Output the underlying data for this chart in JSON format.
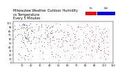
{
  "title": "Milwaukee Weather Outdoor Humidity\nvs Temperature\nEvery 5 Minutes",
  "xlabel": "",
  "ylabel": "",
  "xlim": [
    0,
    110
  ],
  "ylim": [
    0,
    105
  ],
  "xticks": [
    10,
    20,
    30,
    40,
    50,
    60,
    70,
    80,
    90,
    100,
    110
  ],
  "yticks": [
    0,
    10,
    20,
    30,
    40,
    50,
    60,
    70,
    80,
    90,
    100
  ],
  "bg_color": "#ffffff",
  "grid_color": "#cccccc",
  "dot_color_cold": "#0000ff",
  "dot_color_hot": "#ff0000",
  "legend_cold_label": "Cold",
  "legend_hot_label": "Hot",
  "title_fontsize": 3.5,
  "tick_fontsize": 2.5,
  "dot_size": 0.3
}
